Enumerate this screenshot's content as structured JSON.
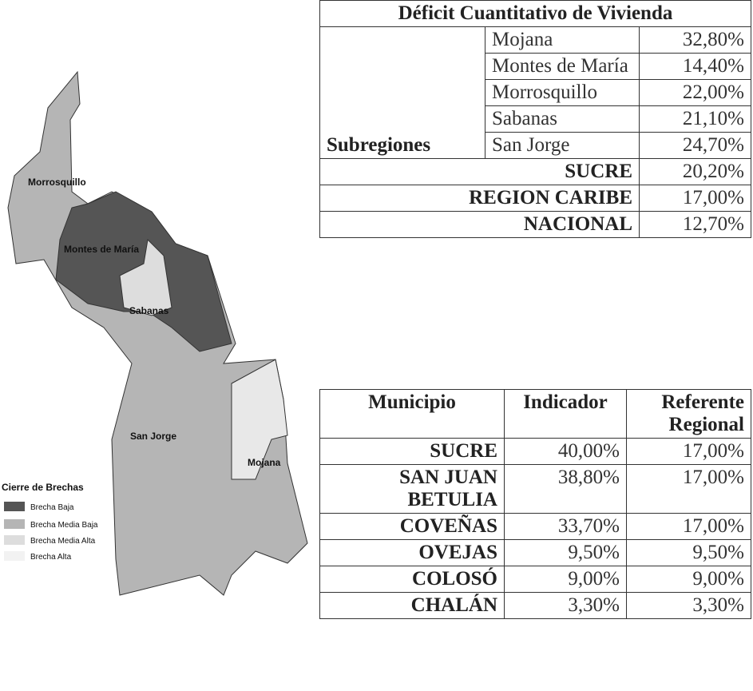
{
  "map": {
    "labels": [
      "Morrosquillo",
      "Montes de María",
      "Sabanas",
      "San Jorge",
      "Mojana"
    ],
    "legend": {
      "title": "Cierre de Brechas",
      "items": [
        "Brecha Baja",
        "Brecha Media Baja",
        "Brecha Media Alta",
        "Brecha Alta"
      ]
    }
  },
  "table1": {
    "title": "Déficit Cuantitativo de Vivienda",
    "group": "Subregiones",
    "subregions": [
      [
        "Mojana",
        "32,80%"
      ],
      [
        "Montes de María",
        "14,40%"
      ],
      [
        "Morrosquillo",
        "22,00%"
      ],
      [
        "Sabanas",
        "21,10%"
      ],
      [
        "San Jorge",
        "24,70%"
      ]
    ],
    "totals": [
      [
        "SUCRE",
        "20,20%"
      ],
      [
        "REGION CARIBE",
        "17,00%"
      ],
      [
        "NACIONAL",
        "12,70%"
      ]
    ]
  },
  "table2": {
    "header": [
      "Municipio",
      "Indicador",
      "Referente Regional"
    ],
    "rows": [
      [
        "SUCRE",
        "40,00%",
        "17,00%"
      ],
      [
        "SAN JUAN BETULIA",
        "38,80%",
        "17,00%"
      ],
      [
        "COVEÑAS",
        "33,70%",
        "17,00%"
      ],
      [
        "OVEJAS",
        "9,50%",
        "9,50%"
      ],
      [
        "COLOSÓ",
        "9,00%",
        "9,00%"
      ],
      [
        "CHALÁN",
        "3,30%",
        "3,30%"
      ]
    ]
  }
}
